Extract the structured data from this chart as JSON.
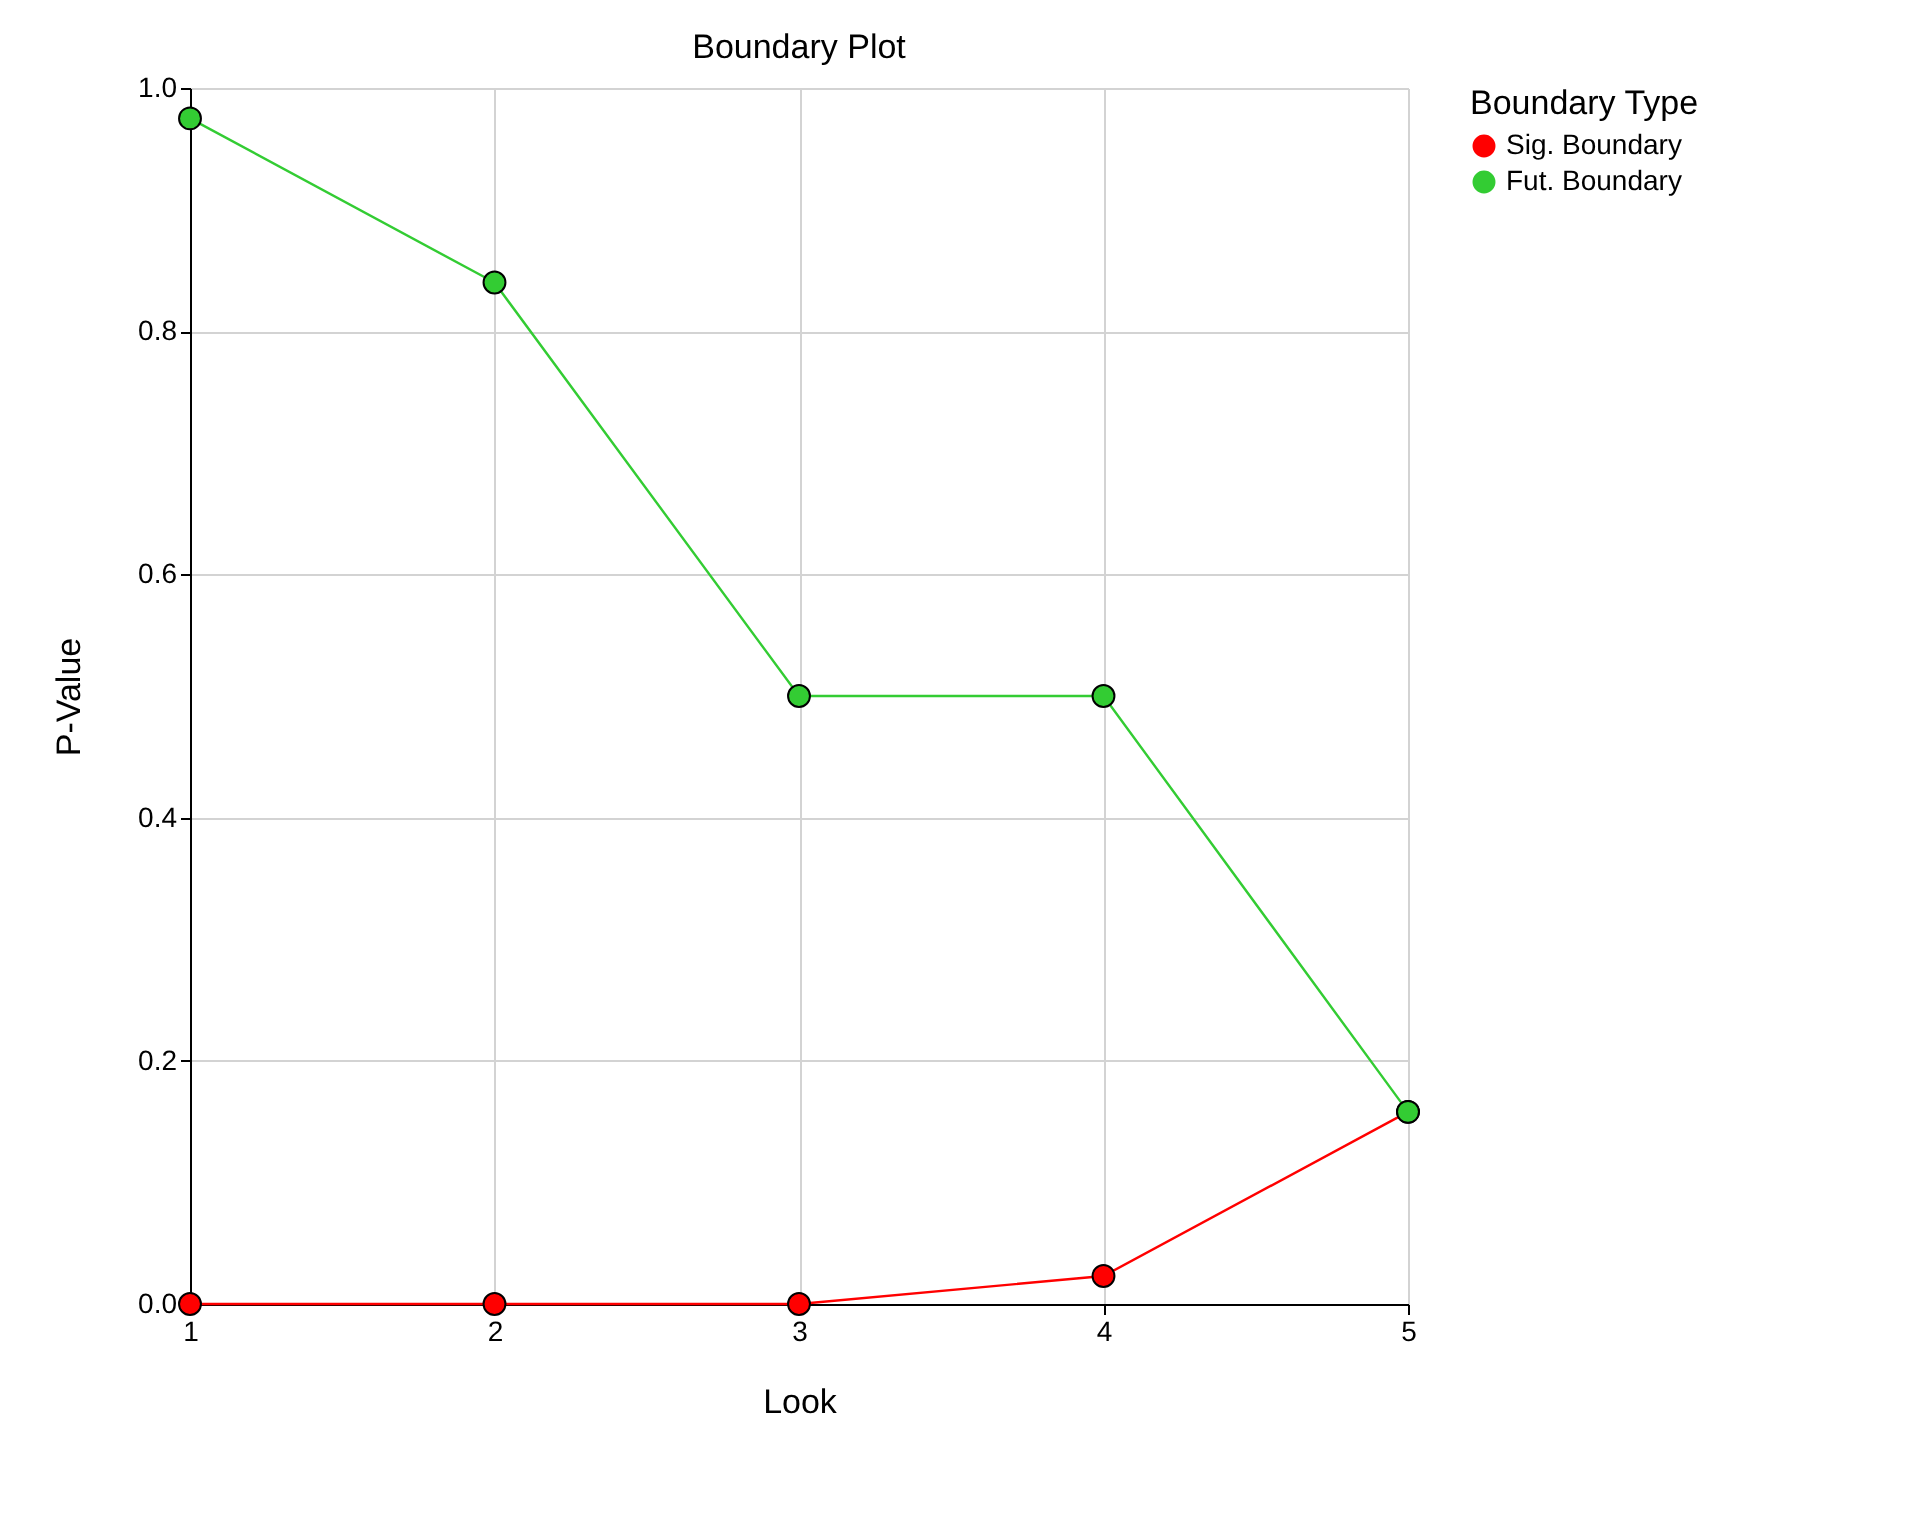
{
  "chart_data": {
    "type": "line",
    "title": "Boundary Plot",
    "xlabel": "Look",
    "ylabel": "P-Value",
    "legend_title": "Boundary Type",
    "x": [
      1,
      2,
      3,
      4,
      5
    ],
    "series": [
      {
        "name": "Sig. Boundary",
        "color": "#ff0000",
        "values": [
          0,
          0,
          0,
          0.023,
          0.158
        ]
      },
      {
        "name": "Fut. Boundary",
        "color": "#33cc33",
        "values": [
          0.975,
          0.84,
          0.5,
          0.5,
          0.158
        ]
      }
    ],
    "xlim": [
      1,
      5
    ],
    "xticks": [
      1,
      2,
      3,
      4,
      5
    ],
    "ylim": [
      0,
      1
    ],
    "yticks": [
      {
        "value": 0,
        "label": "0.0"
      },
      {
        "value": 0.2,
        "label": "0.2"
      },
      {
        "value": 0.4,
        "label": "0.4"
      },
      {
        "value": 0.6,
        "label": "0.6"
      },
      {
        "value": 0.8,
        "label": "0.8"
      },
      {
        "value": 1,
        "label": "1.0"
      }
    ],
    "grid": true,
    "legend": "right",
    "marker": "circle",
    "line_style": "solid"
  }
}
